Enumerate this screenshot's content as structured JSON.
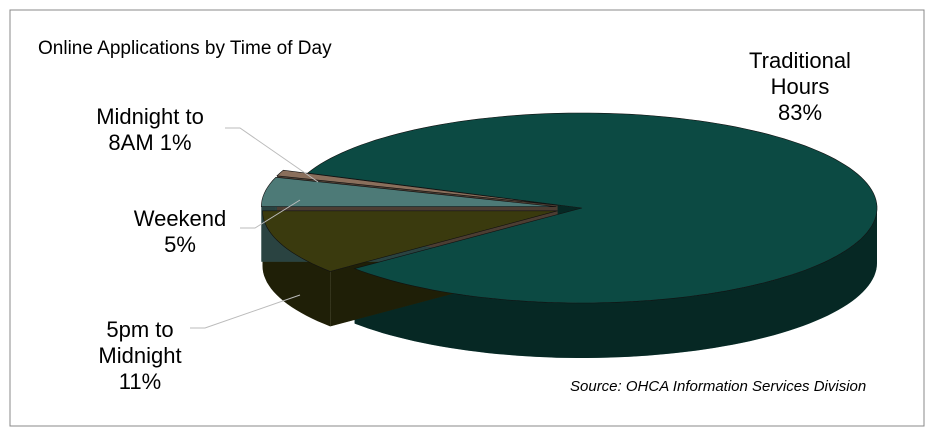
{
  "chart_data": {
    "type": "pie",
    "title": "Online Applications by Time of Day",
    "categories": [
      "Traditional Hours",
      "5pm to Midnight",
      "Weekend",
      "Midnight to 8AM"
    ],
    "values": [
      83,
      11,
      5,
      1
    ],
    "value_labels": [
      "83%",
      "11%",
      "5%",
      "1%"
    ],
    "colors": [
      "#0c4a43",
      "#3a3a0e",
      "#4d7a77",
      "#8a6f5c"
    ],
    "source": "Source: OHCA Information Services Division"
  }
}
